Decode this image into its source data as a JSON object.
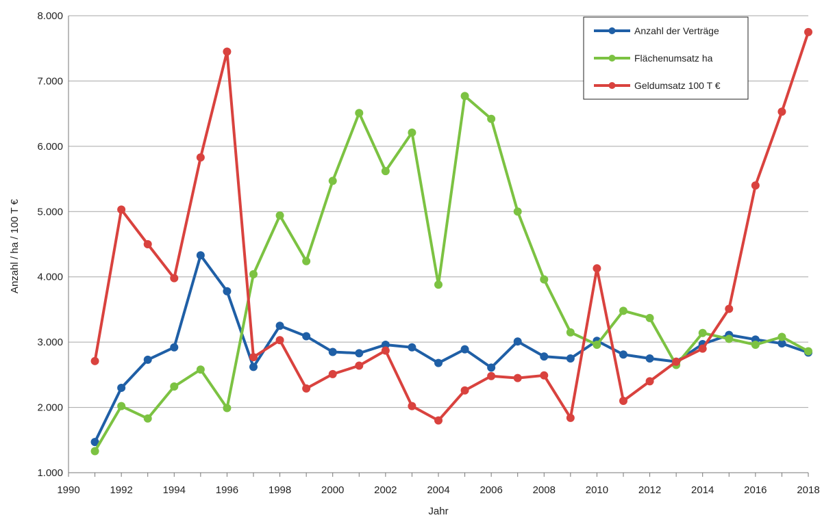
{
  "chart_data": {
    "type": "line",
    "xlabel": "Jahr",
    "ylabel": "Anzahl / ha / 100 T €",
    "xlim": [
      1990,
      2018
    ],
    "ylim": [
      1000,
      8000
    ],
    "x_ticks": [
      "1990",
      "1992",
      "1994",
      "1996",
      "1998",
      "2000",
      "2002",
      "2004",
      "2006",
      "2008",
      "2010",
      "2012",
      "2014",
      "2016",
      "2018"
    ],
    "y_ticks": [
      "1.000",
      "2.000",
      "3.000",
      "4.000",
      "5.000",
      "6.000",
      "7.000",
      "8.000"
    ],
    "grid": "horizontal",
    "legend_position": "top-right",
    "x": [
      1991,
      1992,
      1993,
      1994,
      1995,
      1996,
      1997,
      1998,
      1999,
      2000,
      2001,
      2002,
      2003,
      2004,
      2005,
      2006,
      2007,
      2008,
      2009,
      2010,
      2011,
      2012,
      2013,
      2014,
      2015,
      2016,
      2017,
      2018
    ],
    "series": [
      {
        "name": "Anzahl der Verträge",
        "color": "#1f5fa6",
        "values": [
          1470,
          2300,
          2730,
          2920,
          4330,
          3780,
          2620,
          3250,
          3090,
          2850,
          2830,
          2960,
          2920,
          2680,
          2890,
          2610,
          3010,
          2780,
          2750,
          3020,
          2810,
          2750,
          2700,
          2970,
          3110,
          3040,
          2980,
          2840
        ]
      },
      {
        "name": "Flächenumsatz ha",
        "color": "#7cc242",
        "values": [
          1330,
          2020,
          1830,
          2320,
          2580,
          1990,
          4040,
          4940,
          4240,
          5470,
          6510,
          5620,
          6210,
          3880,
          6770,
          6420,
          5000,
          3960,
          3150,
          2960,
          3480,
          3370,
          2650,
          3140,
          3050,
          2960,
          3080,
          2860
        ]
      },
      {
        "name": "Geldumsatz 100 T €",
        "color": "#d9423e",
        "values": [
          2710,
          5030,
          4500,
          3980,
          5830,
          7450,
          2770,
          3030,
          2290,
          2510,
          2640,
          2870,
          2020,
          1800,
          2260,
          2480,
          2450,
          2490,
          1840,
          4130,
          2100,
          2400,
          2700,
          2900,
          3510,
          5400,
          6530,
          7750
        ]
      }
    ]
  }
}
